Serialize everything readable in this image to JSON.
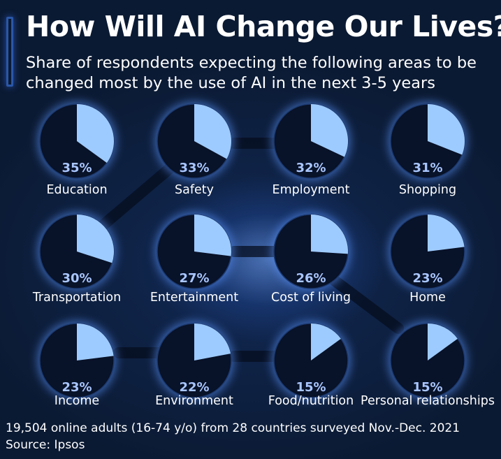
{
  "title": "How Will AI Change Our Lives?",
  "subtitle": "Share of respondents expecting the following areas to be changed most by the use of AI in the next 3-5 years",
  "colors": {
    "background": "#0b1a33",
    "pie_fill": "#9ecbff",
    "pie_base": "#081228",
    "value_text": "#a9c6ff",
    "accent": "#2a57a8"
  },
  "chart_data": {
    "type": "pie",
    "title": "How Will AI Change Our Lives?",
    "subtitle": "Share of respondents expecting the following areas to be changed most by the use of AI in the next 3-5 years",
    "unit": "%",
    "categories": [
      "Education",
      "Safety",
      "Employment",
      "Shopping",
      "Transportation",
      "Entertainment",
      "Cost of living",
      "Home",
      "Income",
      "Environment",
      "Food/nutrition",
      "Personal relationships"
    ],
    "values": [
      35,
      33,
      32,
      31,
      30,
      27,
      26,
      23,
      23,
      22,
      15,
      15
    ],
    "layout": "grid 3 rows x 4 columns, one pie per category"
  },
  "footer": {
    "note": "19,504 online adults (16-74 y/o) from 28 countries surveyed Nov.-Dec. 2021",
    "source": "Source: Ipsos"
  }
}
